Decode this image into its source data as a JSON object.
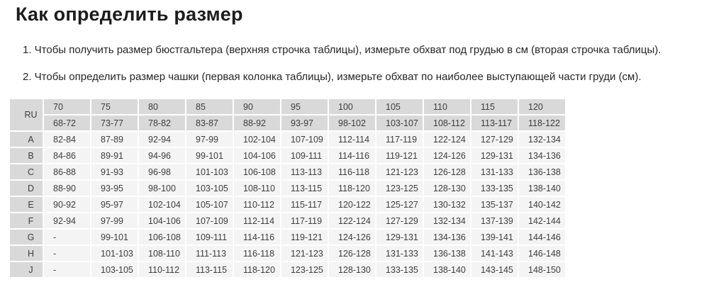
{
  "page": {
    "title": "Как определить размер",
    "instructions": [
      "1. Чтобы получить размер бюстгальтера (верхняя строчка таблицы), измерьте обхват под грудью в см (вторая строчка таблицы).",
      "2. Чтобы определить размер чашки (первая колонка таблицы), измерьте обхват по наиболее выступающей части груди (см)."
    ]
  },
  "colors": {
    "header_cell_bg": "#d9d9d9",
    "value_cell_bg": "#f4f4f4",
    "table_text": "#3d3d3d",
    "page_bg": "#ffffff"
  },
  "size_table": {
    "corner_label": "RU",
    "band_sizes": [
      "70",
      "75",
      "80",
      "85",
      "90",
      "95",
      "100",
      "105",
      "110",
      "115",
      "120"
    ],
    "underbust_ranges": [
      "68-72",
      "73-77",
      "78-82",
      "83-87",
      "88-92",
      "93-97",
      "98-102",
      "103-107",
      "108-112",
      "113-117",
      "118-122"
    ],
    "cup_rows": [
      {
        "cup": "A",
        "values": [
          "82-84",
          "87-89",
          "92-94",
          "97-99",
          "102-104",
          "107-109",
          "112-114",
          "117-119",
          "122-124",
          "127-129",
          "132-134"
        ]
      },
      {
        "cup": "B",
        "values": [
          "84-86",
          "89-91",
          "94-96",
          "99-101",
          "104-106",
          "109-111",
          "114-116",
          "119-121",
          "124-126",
          "129-131",
          "134-136"
        ]
      },
      {
        "cup": "C",
        "values": [
          "86-88",
          "91-93",
          "96-98",
          "101-103",
          "106-108",
          "113-113",
          "116-118",
          "121-123",
          "126-128",
          "131-133",
          "136-138"
        ]
      },
      {
        "cup": "D",
        "values": [
          "88-90",
          "93-95",
          "98-100",
          "103-105",
          "108-110",
          "113-115",
          "118-120",
          "123-125",
          "128-130",
          "133-135",
          "138-140"
        ]
      },
      {
        "cup": "E",
        "values": [
          "90-92",
          "95-97",
          "102-104",
          "105-107",
          "110-112",
          "115-117",
          "120-122",
          "125-127",
          "130-132",
          "135-137",
          "140-142"
        ]
      },
      {
        "cup": "F",
        "values": [
          "92-94",
          "97-99",
          "104-106",
          "107-109",
          "112-114",
          "117-119",
          "122-124",
          "127-129",
          "132-134",
          "137-139",
          "142-144"
        ]
      },
      {
        "cup": "G",
        "values": [
          "-",
          "99-101",
          "106-108",
          "109-111",
          "114-116",
          "119-121",
          "124-126",
          "129-131",
          "134-136",
          "139-141",
          "144-146"
        ]
      },
      {
        "cup": "H",
        "values": [
          "-",
          "101-103",
          "108-110",
          "111-113",
          "116-118",
          "121-123",
          "126-128",
          "131-133",
          "136-138",
          "141-143",
          "146-148"
        ]
      },
      {
        "cup": "J",
        "values": [
          "-",
          "103-105",
          "110-112",
          "113-115",
          "118-120",
          "123-125",
          "128-130",
          "133-135",
          "138-140",
          "143-145",
          "148-150"
        ]
      }
    ]
  }
}
